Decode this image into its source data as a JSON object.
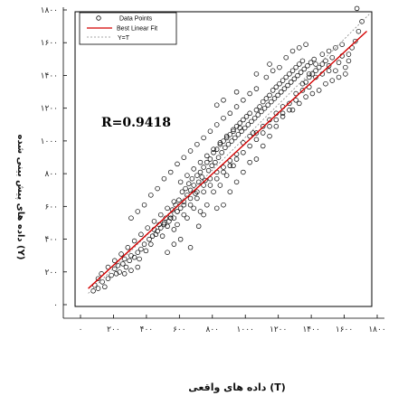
{
  "chart_data": {
    "type": "scatter",
    "xlabel": "(T) داده های واقعی",
    "ylabel": "(Y) داده های پیش بینی شده",
    "annotation": "R=0.9418",
    "xlim": [
      0,
      1800
    ],
    "ylim": [
      0,
      1800
    ],
    "x_ticks": [
      "۰",
      "۲۰۰",
      "۴۰۰",
      "۶۰۰",
      "۸۰۰",
      "۱۰۰۰",
      "۱۲۰۰",
      "۱۴۰۰",
      "۱۶۰۰",
      "۱۸۰۰"
    ],
    "y_ticks": [
      "۰",
      "۲۰۰",
      "۴۰۰",
      "۶۰۰",
      "۸۰۰",
      "۱۰۰۰",
      "۱۲۰۰",
      "۱۴۰۰",
      "۱۶۰۰",
      "۱۸۰۰"
    ],
    "x_tick_values": [
      0,
      200,
      400,
      600,
      800,
      1000,
      1200,
      1400,
      1600,
      1800
    ],
    "y_tick_values": [
      0,
      200,
      400,
      600,
      800,
      1000,
      1200,
      1400,
      1600,
      1800
    ],
    "grid": false,
    "legend_position": "top-left",
    "legend": [
      "Data Points",
      "Best Linear Fit",
      "Y=T"
    ],
    "fit": {
      "slope": 0.93,
      "intercept": 35
    },
    "colors": {
      "points": "#000000",
      "fit": "#d40000",
      "identity": "#888888",
      "axes": "#000000"
    },
    "series": [
      {
        "name": "Data Points",
        "points": [
          [
            110,
            95
          ],
          [
            120,
            130
          ],
          [
            140,
            110
          ],
          [
            165,
            150
          ],
          [
            180,
            120
          ],
          [
            200,
            170
          ],
          [
            220,
            190
          ],
          [
            240,
            230
          ],
          [
            250,
            200
          ],
          [
            260,
            250
          ],
          [
            270,
            210
          ],
          [
            290,
            260
          ],
          [
            300,
            290
          ],
          [
            310,
            240
          ],
          [
            330,
            280
          ],
          [
            340,
            310
          ],
          [
            360,
            300
          ],
          [
            380,
            330
          ],
          [
            390,
            290
          ],
          [
            400,
            350
          ],
          [
            420,
            380
          ],
          [
            430,
            340
          ],
          [
            450,
            410
          ],
          [
            460,
            380
          ],
          [
            470,
            430
          ],
          [
            480,
            470
          ],
          [
            490,
            440
          ],
          [
            500,
            460
          ],
          [
            510,
            500
          ],
          [
            520,
            480
          ],
          [
            530,
            430
          ],
          [
            540,
            510
          ],
          [
            550,
            540
          ],
          [
            560,
            490
          ],
          [
            570,
            520
          ],
          [
            580,
            560
          ],
          [
            590,
            590
          ],
          [
            600,
            540
          ],
          [
            610,
            620
          ],
          [
            620,
            580
          ],
          [
            630,
            650
          ],
          [
            640,
            600
          ],
          [
            650,
            700
          ],
          [
            660,
            640
          ],
          [
            670,
            720
          ],
          [
            680,
            680
          ],
          [
            690,
            750
          ],
          [
            700,
            710
          ],
          [
            710,
            780
          ],
          [
            720,
            740
          ],
          [
            730,
            690
          ],
          [
            740,
            800
          ],
          [
            750,
            760
          ],
          [
            760,
            820
          ],
          [
            770,
            790
          ],
          [
            780,
            850
          ],
          [
            790,
            770
          ],
          [
            800,
            880
          ],
          [
            810,
            830
          ],
          [
            820,
            900
          ],
          [
            830,
            860
          ],
          [
            840,
            940
          ],
          [
            850,
            880
          ],
          [
            860,
            960
          ],
          [
            870,
            910
          ],
          [
            880,
            990
          ],
          [
            890,
            940
          ],
          [
            900,
            1010
          ],
          [
            910,
            970
          ],
          [
            920,
            1030
          ],
          [
            930,
            990
          ],
          [
            940,
            1050
          ],
          [
            950,
            1010
          ],
          [
            960,
            1080
          ],
          [
            970,
            1030
          ],
          [
            980,
            1100
          ],
          [
            990,
            1050
          ],
          [
            1000,
            1120
          ],
          [
            1010,
            1070
          ],
          [
            1020,
            1140
          ],
          [
            1030,
            1090
          ],
          [
            1040,
            1160
          ],
          [
            1050,
            1110
          ],
          [
            1060,
            1180
          ],
          [
            1070,
            1130
          ],
          [
            1080,
            1060
          ],
          [
            1090,
            1150
          ],
          [
            1100,
            1200
          ],
          [
            1110,
            1170
          ],
          [
            1120,
            1220
          ],
          [
            1130,
            1190
          ],
          [
            1140,
            1250
          ],
          [
            1150,
            1210
          ],
          [
            1160,
            1270
          ],
          [
            1170,
            1230
          ],
          [
            1180,
            1290
          ],
          [
            1190,
            1250
          ],
          [
            1200,
            1320
          ],
          [
            1210,
            1270
          ],
          [
            1220,
            1340
          ],
          [
            1230,
            1290
          ],
          [
            1240,
            1360
          ],
          [
            1250,
            1310
          ],
          [
            1260,
            1380
          ],
          [
            1270,
            1330
          ],
          [
            1280,
            1400
          ],
          [
            1290,
            1350
          ],
          [
            1300,
            1420
          ],
          [
            1310,
            1370
          ],
          [
            1320,
            1440
          ],
          [
            1330,
            1390
          ],
          [
            1340,
            1460
          ],
          [
            1350,
            1410
          ],
          [
            1360,
            1480
          ],
          [
            1370,
            1430
          ],
          [
            1380,
            1500
          ],
          [
            1390,
            1450
          ],
          [
            1400,
            1370
          ],
          [
            1410,
            1470
          ],
          [
            1420,
            1400
          ],
          [
            1430,
            1490
          ],
          [
            1440,
            1420
          ],
          [
            1450,
            1510
          ],
          [
            1460,
            1440
          ],
          [
            1480,
            1460
          ],
          [
            1500,
            1480
          ],
          [
            1520,
            1500
          ],
          [
            1540,
            1470
          ],
          [
            1560,
            1520
          ],
          [
            1580,
            1440
          ],
          [
            1600,
            1490
          ],
          [
            1620,
            1530
          ],
          [
            1640,
            1460
          ],
          [
            1660,
            1500
          ],
          [
            1700,
            1620
          ],
          [
            1720,
            1680
          ],
          [
            1740,
            1740
          ],
          [
            1710,
            1820
          ],
          [
            860,
            600
          ],
          [
            900,
            620
          ],
          [
            940,
            700
          ],
          [
            980,
            760
          ],
          [
            1020,
            820
          ],
          [
            1060,
            880
          ],
          [
            1100,
            900
          ],
          [
            760,
            580
          ],
          [
            800,
            620
          ],
          [
            840,
            700
          ],
          [
            880,
            740
          ],
          [
            920,
            800
          ],
          [
            960,
            860
          ],
          [
            680,
            540
          ],
          [
            720,
            600
          ],
          [
            560,
            330
          ],
          [
            600,
            380
          ],
          [
            640,
            410
          ],
          [
            700,
            360
          ],
          [
            750,
            490
          ],
          [
            780,
            560
          ],
          [
            1140,
            980
          ],
          [
            1180,
            1040
          ],
          [
            1220,
            1100
          ],
          [
            1260,
            1160
          ],
          [
            1300,
            1200
          ],
          [
            1340,
            1260
          ],
          [
            1380,
            1320
          ],
          [
            1420,
            1340
          ],
          [
            1460,
            1400
          ],
          [
            1500,
            1420
          ],
          [
            1540,
            1440
          ],
          [
            1100,
            1330
          ],
          [
            1060,
            1300
          ],
          [
            1020,
            1260
          ],
          [
            980,
            1220
          ],
          [
            940,
            1180
          ],
          [
            900,
            1150
          ],
          [
            860,
            1110
          ],
          [
            820,
            1070
          ],
          [
            780,
            1030
          ],
          [
            740,
            990
          ],
          [
            700,
            950
          ],
          [
            660,
            910
          ],
          [
            620,
            870
          ],
          [
            580,
            820
          ],
          [
            540,
            780
          ],
          [
            500,
            720
          ],
          [
            460,
            680
          ],
          [
            420,
            620
          ],
          [
            380,
            580
          ],
          [
            340,
            540
          ],
          [
            1280,
            1520
          ],
          [
            1320,
            1560
          ],
          [
            1360,
            1580
          ],
          [
            1400,
            1600
          ],
          [
            1200,
            1440
          ],
          [
            1160,
            1400
          ],
          [
            1240,
            1460
          ],
          [
            1100,
            1420
          ],
          [
            1180,
            1480
          ],
          [
            900,
            1260
          ],
          [
            860,
            1230
          ],
          [
            980,
            1310
          ],
          [
            1320,
            1200
          ],
          [
            1360,
            1240
          ],
          [
            1400,
            1280
          ],
          [
            1440,
            1300
          ],
          [
            1480,
            1320
          ],
          [
            1520,
            1360
          ],
          [
            1560,
            1380
          ],
          [
            1600,
            1400
          ],
          [
            1640,
            1420
          ],
          [
            1020,
            1000
          ],
          [
            1060,
            1040
          ],
          [
            1100,
            1060
          ],
          [
            1140,
            1100
          ],
          [
            1180,
            1140
          ],
          [
            1220,
            1180
          ],
          [
            1260,
            1220
          ],
          [
            980,
            930
          ],
          [
            940,
            890
          ],
          [
            900,
            850
          ],
          [
            860,
            820
          ],
          [
            820,
            780
          ],
          [
            780,
            740
          ],
          [
            740,
            700
          ],
          [
            700,
            660
          ],
          [
            660,
            620
          ],
          [
            620,
            580
          ],
          [
            580,
            540
          ],
          [
            540,
            500
          ],
          [
            640,
            760
          ],
          [
            680,
            800
          ],
          [
            720,
            840
          ],
          [
            760,
            880
          ],
          [
            800,
            920
          ],
          [
            840,
            960
          ],
          [
            880,
            1000
          ],
          [
            920,
            1040
          ],
          [
            960,
            1070
          ],
          [
            1000,
            1090
          ],
          [
            560,
            600
          ],
          [
            600,
            640
          ],
          [
            520,
            560
          ],
          [
            480,
            520
          ],
          [
            440,
            480
          ],
          [
            400,
            440
          ],
          [
            360,
            400
          ],
          [
            320,
            360
          ],
          [
            280,
            320
          ],
          [
            240,
            280
          ],
          [
            200,
            240
          ],
          [
            160,
            200
          ],
          [
            140,
            170
          ],
          [
            300,
            200
          ],
          [
            340,
            220
          ],
          [
            380,
            240
          ],
          [
            600,
            470
          ],
          [
            620,
            500
          ],
          [
            660,
            560
          ],
          [
            700,
            620
          ],
          [
            740,
            660
          ],
          [
            780,
            700
          ],
          [
            820,
            740
          ],
          [
            860,
            780
          ],
          [
            900,
            820
          ],
          [
            940,
            860
          ],
          [
            980,
            900
          ],
          [
            1020,
            940
          ],
          [
            1060,
            980
          ],
          [
            1100,
            1020
          ],
          [
            1140,
            1060
          ],
          [
            1180,
            1100
          ],
          [
            1220,
            1140
          ],
          [
            1260,
            1180
          ],
          [
            1300,
            1240
          ],
          [
            1340,
            1300
          ],
          [
            1380,
            1360
          ],
          [
            1420,
            1420
          ],
          [
            1460,
            1480
          ],
          [
            1500,
            1540
          ],
          [
            1540,
            1560
          ],
          [
            1580,
            1580
          ],
          [
            1620,
            1600
          ],
          [
            1660,
            1540
          ],
          [
            1680,
            1580
          ]
        ]
      }
    ]
  }
}
